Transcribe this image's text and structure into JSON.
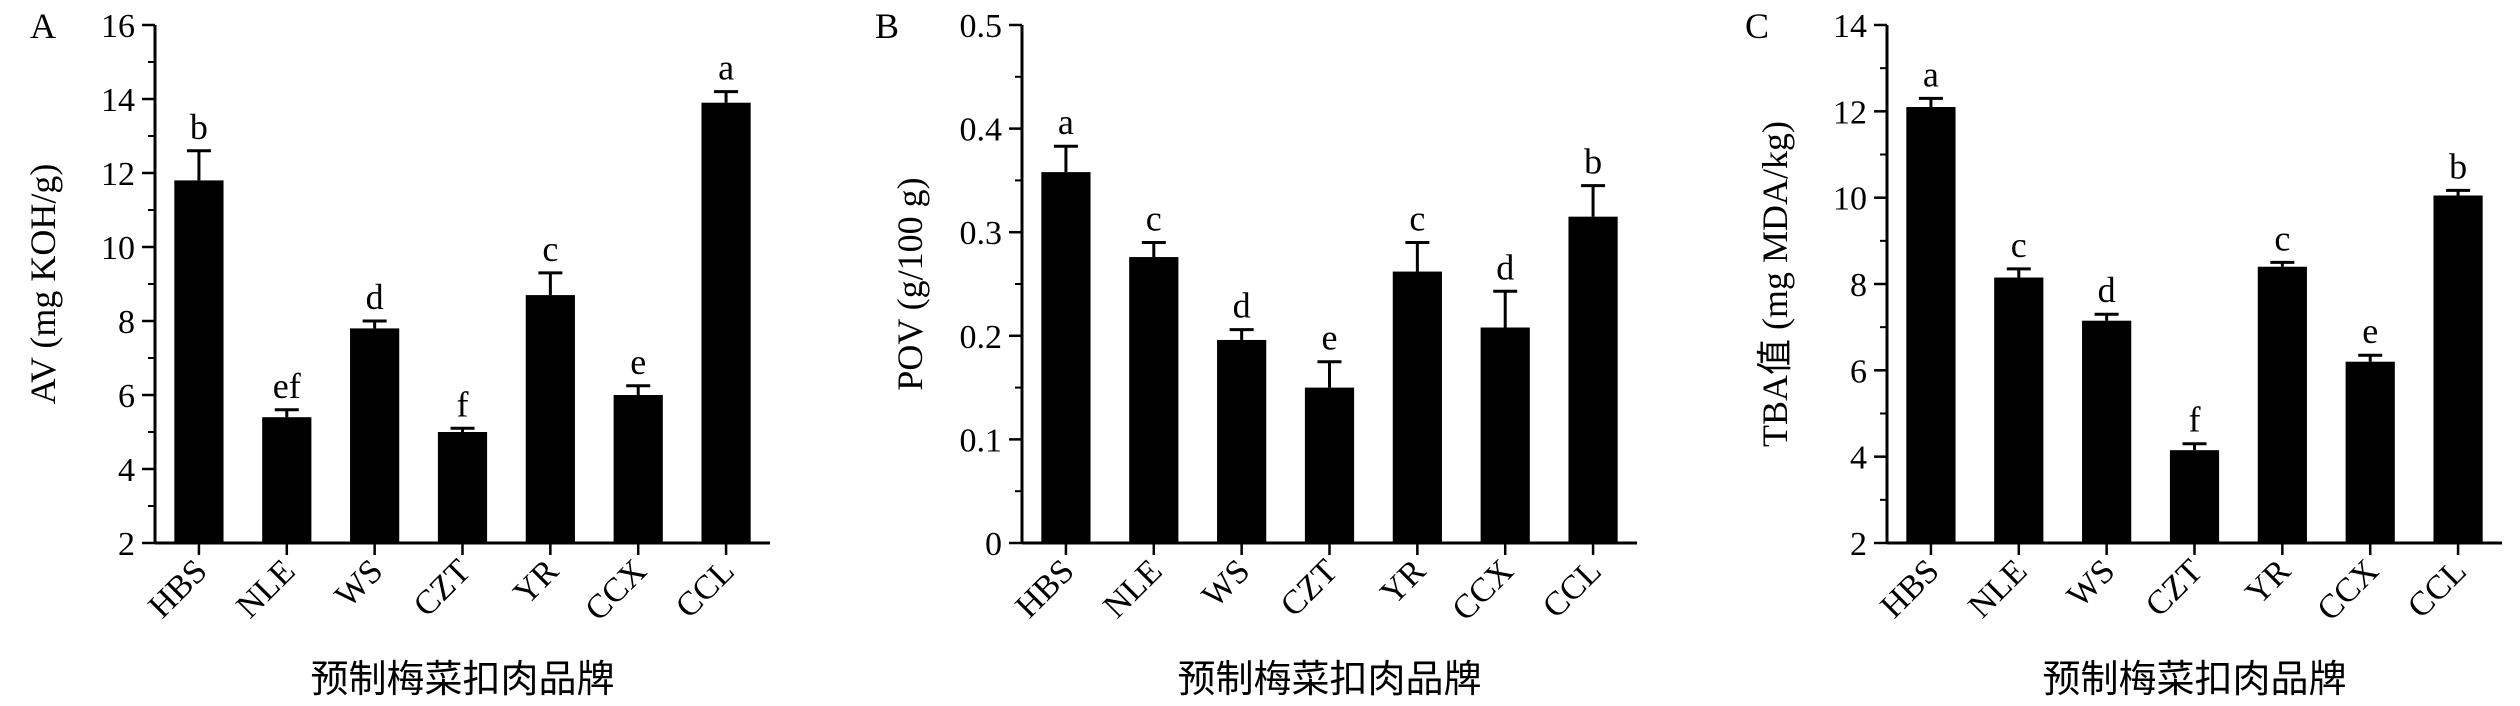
{
  "chart_data": [
    {
      "type": "bar",
      "panel_letter": "A",
      "categories": [
        "HBS",
        "NLE",
        "WS",
        "CZT",
        "YR",
        "CCX",
        "CCL"
      ],
      "values": [
        11.8,
        5.4,
        7.8,
        5.0,
        8.7,
        6.0,
        13.9
      ],
      "errors": [
        0.8,
        0.2,
        0.2,
        0.1,
        0.6,
        0.25,
        0.3
      ],
      "significance_letters": [
        "b",
        "ef",
        "d",
        "f",
        "c",
        "e",
        "a"
      ],
      "ylabel": "AV (mg KOH/g)",
      "xlabel": "预制梅菜扣肉品牌",
      "ylim": [
        2,
        16
      ],
      "yticks": [
        2,
        4,
        6,
        8,
        10,
        12,
        14,
        16
      ],
      "ytick_labels": [
        "2",
        "4",
        "6",
        "8",
        "10",
        "12",
        "14",
        "16"
      ],
      "minor_step": 1,
      "bar_color": "#000000"
    },
    {
      "type": "bar",
      "panel_letter": "B",
      "categories": [
        "HBS",
        "NLE",
        "WS",
        "CZT",
        "YR",
        "CCX",
        "CCL"
      ],
      "values": [
        0.358,
        0.276,
        0.196,
        0.15,
        0.262,
        0.208,
        0.315
      ],
      "errors": [
        0.025,
        0.014,
        0.01,
        0.025,
        0.028,
        0.035,
        0.03
      ],
      "significance_letters": [
        "a",
        "c",
        "d",
        "e",
        "c",
        "d",
        "b"
      ],
      "ylabel": "POV (g/100 g)",
      "xlabel": "预制梅菜扣肉品牌",
      "ylim": [
        0,
        0.5
      ],
      "yticks": [
        0,
        0.1,
        0.2,
        0.3,
        0.4,
        0.5
      ],
      "ytick_labels": [
        "0",
        "0.1",
        "0.2",
        "0.3",
        "0.4",
        "0.5"
      ],
      "minor_step": 0.05,
      "bar_color": "#000000"
    },
    {
      "type": "bar",
      "panel_letter": "C",
      "categories": [
        "HBS",
        "NLE",
        "WS",
        "CZT",
        "YR",
        "CCX",
        "CCL"
      ],
      "values": [
        12.1,
        8.15,
        7.15,
        4.15,
        8.4,
        6.2,
        10.05
      ],
      "errors": [
        0.2,
        0.2,
        0.15,
        0.15,
        0.1,
        0.15,
        0.12
      ],
      "significance_letters": [
        "a",
        "c",
        "d",
        "f",
        "c",
        "e",
        "b"
      ],
      "ylabel": "TBA值 (mg MDA/kg)",
      "xlabel": "预制梅菜扣肉品牌",
      "ylim": [
        2,
        14
      ],
      "yticks": [
        2,
        4,
        6,
        8,
        10,
        12,
        14
      ],
      "ytick_labels": [
        "2",
        "4",
        "6",
        "8",
        "10",
        "12",
        "14"
      ],
      "minor_step": 1,
      "bar_color": "#000000"
    }
  ]
}
